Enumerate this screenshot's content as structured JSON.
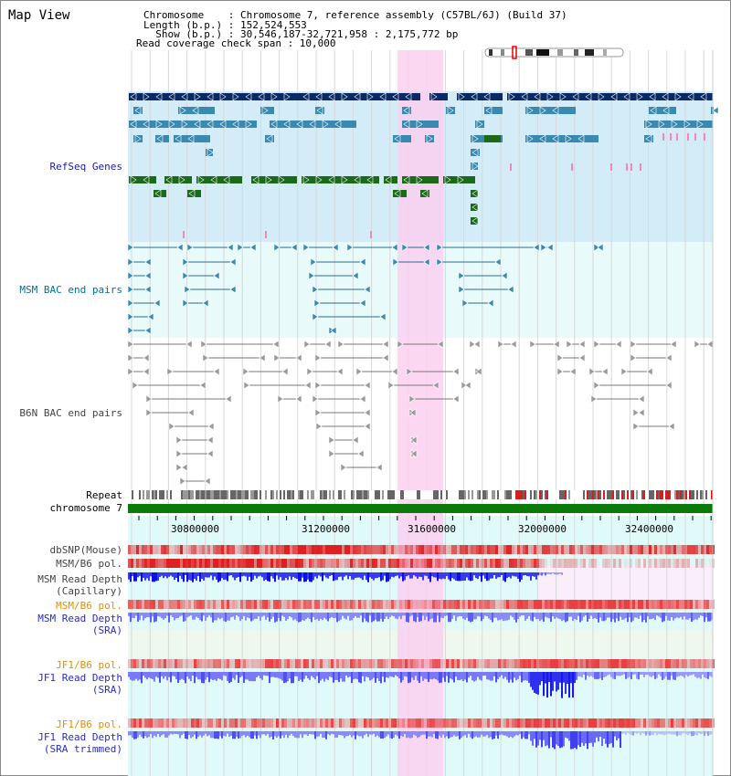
{
  "title": "Map View",
  "header": {
    "line1": "Chromosome    : Chromosome 7, reference assembly (C57BL/6J) (Build 37)",
    "line2": "Length (b.p.) : 152,524,553",
    "line3": "  Show (b.p.) : 30,546,187-32,721,958 : 2,175,772 bp",
    "line4": "Read coverage check span : 10,000"
  },
  "tracks": {
    "refseq": "RefSeq Genes",
    "msm_bac": "MSM BAC end pairs",
    "b6n_bac": "B6N BAC end pairs",
    "repeat": "Repeat",
    "chromosome": "chromosome 7",
    "dbsnp": "dbSNP(Mouse)",
    "msm_b6_pol_1": "MSM/B6 pol.",
    "msm_depth_cap_1": "MSM Read Depth",
    "msm_depth_cap_2": "(Capillary)",
    "msm_b6_pol_2": "MSM/B6 pol.",
    "msm_depth_sra_1": "MSM Read Depth",
    "msm_depth_sra_2": "(SRA)",
    "jf1_pol_1": "JF1/B6 pol.",
    "jf1_depth_sra_1": "JF1 Read Depth",
    "jf1_depth_sra_2": "(SRA)",
    "jf1_pol_2": "JF1/B6 pol.",
    "jf1_depth_trim_1": "JF1 Read Depth",
    "jf1_depth_trim_2": "(SRA trimmed)"
  },
  "axis": {
    "ticks": [
      "30800000",
      "31200000",
      "31600000",
      "32000000",
      "32400000"
    ]
  },
  "colors": {
    "navy_gene": "#0a2a66",
    "steel_gene": "#3a8ab0",
    "green_gene": "#1a6a1a",
    "refseq_bg": "#d4ecf8",
    "bac_bg": "#e8fafa",
    "highlight": "#fad0f0",
    "msm_label": "#007090",
    "refseq_label": "#1a1aa8",
    "orange_label": "#e09000",
    "blue_label": "#2a2ac8",
    "gray_label": "#444444"
  }
}
